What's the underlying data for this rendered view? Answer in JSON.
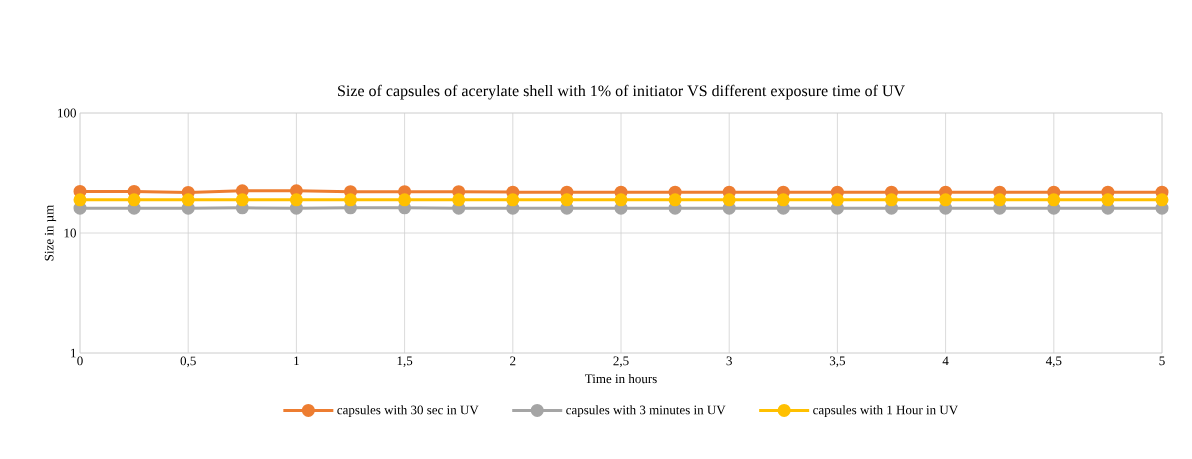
{
  "chart_data": {
    "type": "line",
    "title": "Size of capsules of acerylate shell with 1% of initiator VS different exposure time of UV",
    "xlabel": "Time in hours",
    "ylabel": "Size in µm",
    "x": [
      0,
      0.25,
      0.5,
      0.75,
      1,
      1.25,
      1.5,
      1.75,
      2,
      2.25,
      2.5,
      2.75,
      3,
      3.25,
      3.5,
      3.75,
      4,
      4.25,
      4.5,
      4.75,
      5
    ],
    "series": [
      {
        "name": "capsules with 30 sec in UV",
        "color": "#ed7d31",
        "values": [
          22.2,
          22.2,
          21.8,
          22.5,
          22.5,
          22.1,
          22.1,
          22.1,
          21.9,
          21.9,
          21.9,
          21.9,
          21.9,
          21.9,
          21.9,
          21.9,
          21.9,
          21.9,
          21.9,
          21.9,
          21.9
        ]
      },
      {
        "name": "capsules with 3 minutes in UV",
        "color": "#a5a5a5",
        "values": [
          16.1,
          16.1,
          16.1,
          16.2,
          16.1,
          16.2,
          16.2,
          16.1,
          16.1,
          16.1,
          16.1,
          16.1,
          16.1,
          16.1,
          16.1,
          16.1,
          16.1,
          16.1,
          16.1,
          16.1,
          16.1
        ]
      },
      {
        "name": "capsules with 1 Hour in UV",
        "color": "#ffc000",
        "values": [
          18.9,
          18.9,
          18.9,
          18.9,
          18.9,
          18.9,
          18.9,
          18.9,
          18.9,
          18.9,
          18.9,
          18.9,
          18.9,
          18.9,
          18.9,
          18.9,
          18.9,
          18.9,
          18.9,
          18.9,
          18.9
        ]
      }
    ],
    "xlim": [
      0,
      5
    ],
    "ylim": [
      1,
      100
    ],
    "xticks": [
      0,
      {
        "value": 0.5,
        "label": "0,5"
      },
      1,
      {
        "value": 1.5,
        "label": "1,5"
      },
      2,
      {
        "value": 2.5,
        "label": "2,5"
      },
      3,
      {
        "value": 3.5,
        "label": "3,5"
      },
      4,
      {
        "value": 4.5,
        "label": "4,5"
      },
      5
    ],
    "yticks": [
      1,
      10,
      100
    ],
    "log": "y",
    "grid": true,
    "legend": "bottom",
    "marker": "circle",
    "line_style": "solid"
  }
}
